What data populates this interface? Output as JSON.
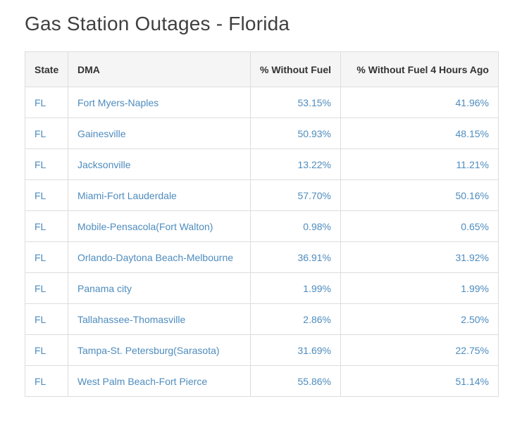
{
  "page": {
    "title": "Gas Station Outages - Florida"
  },
  "colors": {
    "link_text": "#4e8cbe",
    "header_background": "#f5f5f5",
    "header_text": "#333333",
    "table_border": "#dddddd",
    "title_text": "#404040",
    "page_background": "#ffffff"
  },
  "table": {
    "columns": [
      {
        "key": "state",
        "label": "State",
        "align": "left"
      },
      {
        "key": "dma",
        "label": "DMA",
        "align": "left"
      },
      {
        "key": "pct",
        "label": "% Without Fuel",
        "align": "right"
      },
      {
        "key": "pct4h",
        "label": "% Without Fuel 4 Hours Ago",
        "align": "right"
      }
    ],
    "rows": [
      {
        "state": "FL",
        "dma": "Fort Myers-Naples",
        "pct": "53.15%",
        "pct4h": "41.96%"
      },
      {
        "state": "FL",
        "dma": "Gainesville",
        "pct": "50.93%",
        "pct4h": "48.15%"
      },
      {
        "state": "FL",
        "dma": "Jacksonville",
        "pct": "13.22%",
        "pct4h": "11.21%"
      },
      {
        "state": "FL",
        "dma": "Miami-Fort Lauderdale",
        "pct": "57.70%",
        "pct4h": "50.16%"
      },
      {
        "state": "FL",
        "dma": "Mobile-Pensacola(Fort Walton)",
        "pct": "0.98%",
        "pct4h": "0.65%"
      },
      {
        "state": "FL",
        "dma": "Orlando-Daytona Beach-Melbourne",
        "pct": "36.91%",
        "pct4h": "31.92%"
      },
      {
        "state": "FL",
        "dma": "Panama city",
        "pct": "1.99%",
        "pct4h": "1.99%"
      },
      {
        "state": "FL",
        "dma": "Tallahassee-Thomasville",
        "pct": "2.86%",
        "pct4h": "2.50%"
      },
      {
        "state": "FL",
        "dma": "Tampa-St. Petersburg(Sarasota)",
        "pct": "31.69%",
        "pct4h": "22.75%"
      },
      {
        "state": "FL",
        "dma": "West Palm Beach-Fort Pierce",
        "pct": "55.86%",
        "pct4h": "51.14%"
      }
    ]
  }
}
